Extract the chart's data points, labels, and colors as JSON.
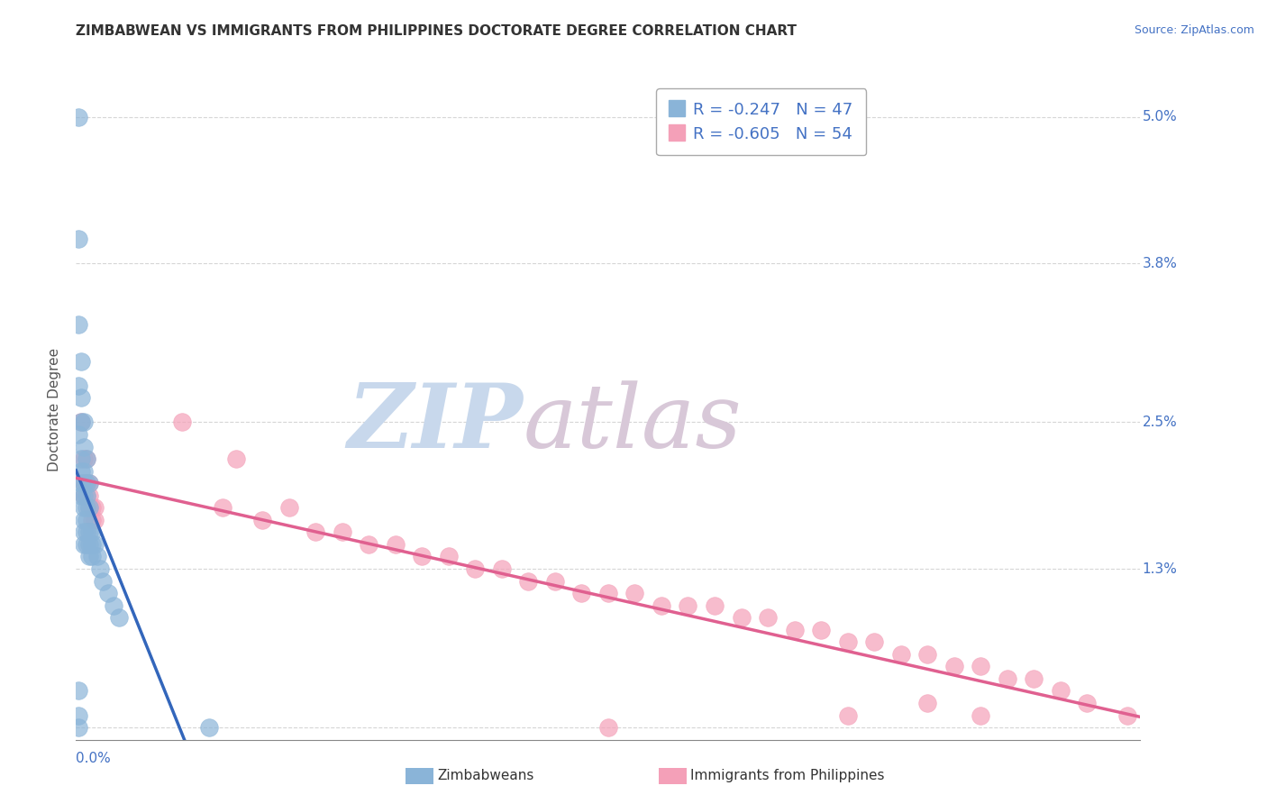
{
  "title": "ZIMBABWEAN VS IMMIGRANTS FROM PHILIPPINES DOCTORATE DEGREE CORRELATION CHART",
  "source": "Source: ZipAtlas.com",
  "ylabel": "Doctorate Degree",
  "yticks": [
    0.0,
    0.013,
    0.025,
    0.038,
    0.05
  ],
  "ytick_labels": [
    "",
    "1.3%",
    "2.5%",
    "3.8%",
    "5.0%"
  ],
  "xlim": [
    0.0,
    0.4
  ],
  "ylim": [
    -0.001,
    0.053
  ],
  "legend1_R": "-0.247",
  "legend1_N": "47",
  "legend2_R": "-0.605",
  "legend2_N": "54",
  "blue_color": "#8ab4d8",
  "pink_color": "#f4a0b8",
  "blue_line_color": "#3366bb",
  "pink_line_color": "#e06090",
  "blue_scatter": [
    [
      0.001,
      0.05
    ],
    [
      0.001,
      0.04
    ],
    [
      0.001,
      0.033
    ],
    [
      0.002,
      0.03
    ],
    [
      0.001,
      0.028
    ],
    [
      0.002,
      0.027
    ],
    [
      0.002,
      0.025
    ],
    [
      0.003,
      0.025
    ],
    [
      0.001,
      0.024
    ],
    [
      0.003,
      0.023
    ],
    [
      0.002,
      0.022
    ],
    [
      0.004,
      0.022
    ],
    [
      0.002,
      0.021
    ],
    [
      0.003,
      0.021
    ],
    [
      0.004,
      0.02
    ],
    [
      0.003,
      0.02
    ],
    [
      0.002,
      0.02
    ],
    [
      0.005,
      0.02
    ],
    [
      0.003,
      0.019
    ],
    [
      0.004,
      0.019
    ],
    [
      0.002,
      0.019
    ],
    [
      0.003,
      0.018
    ],
    [
      0.004,
      0.018
    ],
    [
      0.005,
      0.018
    ],
    [
      0.004,
      0.017
    ],
    [
      0.003,
      0.017
    ],
    [
      0.005,
      0.016
    ],
    [
      0.004,
      0.016
    ],
    [
      0.003,
      0.016
    ],
    [
      0.006,
      0.016
    ],
    [
      0.005,
      0.015
    ],
    [
      0.004,
      0.015
    ],
    [
      0.003,
      0.015
    ],
    [
      0.006,
      0.015
    ],
    [
      0.007,
      0.015
    ],
    [
      0.005,
      0.014
    ],
    [
      0.006,
      0.014
    ],
    [
      0.008,
      0.014
    ],
    [
      0.009,
      0.013
    ],
    [
      0.01,
      0.012
    ],
    [
      0.012,
      0.011
    ],
    [
      0.014,
      0.01
    ],
    [
      0.016,
      0.009
    ],
    [
      0.001,
      0.003
    ],
    [
      0.001,
      0.001
    ],
    [
      0.001,
      0.0
    ],
    [
      0.05,
      0.0
    ]
  ],
  "pink_scatter": [
    [
      0.002,
      0.025
    ],
    [
      0.003,
      0.022
    ],
    [
      0.004,
      0.022
    ],
    [
      0.003,
      0.02
    ],
    [
      0.004,
      0.02
    ],
    [
      0.005,
      0.02
    ],
    [
      0.003,
      0.019
    ],
    [
      0.005,
      0.019
    ],
    [
      0.004,
      0.019
    ],
    [
      0.006,
      0.018
    ],
    [
      0.007,
      0.018
    ],
    [
      0.005,
      0.018
    ],
    [
      0.006,
      0.017
    ],
    [
      0.007,
      0.017
    ],
    [
      0.04,
      0.025
    ],
    [
      0.06,
      0.022
    ],
    [
      0.055,
      0.018
    ],
    [
      0.08,
      0.018
    ],
    [
      0.07,
      0.017
    ],
    [
      0.09,
      0.016
    ],
    [
      0.1,
      0.016
    ],
    [
      0.11,
      0.015
    ],
    [
      0.12,
      0.015
    ],
    [
      0.13,
      0.014
    ],
    [
      0.14,
      0.014
    ],
    [
      0.15,
      0.013
    ],
    [
      0.16,
      0.013
    ],
    [
      0.17,
      0.012
    ],
    [
      0.18,
      0.012
    ],
    [
      0.19,
      0.011
    ],
    [
      0.2,
      0.011
    ],
    [
      0.21,
      0.011
    ],
    [
      0.22,
      0.01
    ],
    [
      0.23,
      0.01
    ],
    [
      0.24,
      0.01
    ],
    [
      0.25,
      0.009
    ],
    [
      0.26,
      0.009
    ],
    [
      0.27,
      0.008
    ],
    [
      0.28,
      0.008
    ],
    [
      0.29,
      0.007
    ],
    [
      0.3,
      0.007
    ],
    [
      0.31,
      0.006
    ],
    [
      0.32,
      0.006
    ],
    [
      0.33,
      0.005
    ],
    [
      0.34,
      0.005
    ],
    [
      0.35,
      0.004
    ],
    [
      0.36,
      0.004
    ],
    [
      0.37,
      0.003
    ],
    [
      0.38,
      0.002
    ],
    [
      0.32,
      0.002
    ],
    [
      0.29,
      0.001
    ],
    [
      0.34,
      0.001
    ],
    [
      0.395,
      0.001
    ],
    [
      0.2,
      0.0
    ]
  ],
  "watermark_zip_color": "#c8d8ec",
  "watermark_atlas_color": "#d8c8d8",
  "background_color": "#ffffff",
  "grid_color": "#cccccc"
}
